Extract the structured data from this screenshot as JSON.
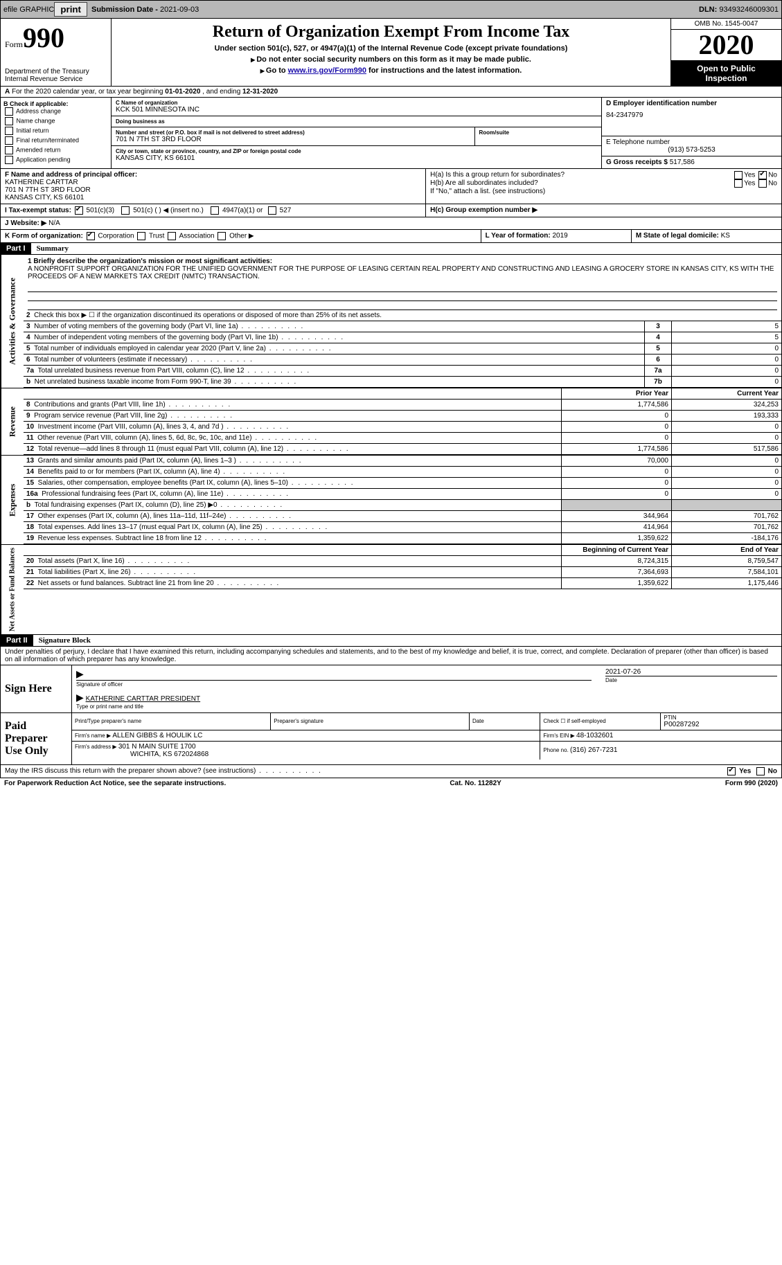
{
  "topbar": {
    "efile": "efile GRAPHIC",
    "print": "print",
    "subdate_lbl": "Submission Date - ",
    "subdate": "2021-09-03",
    "dln_lbl": "DLN: ",
    "dln": "93493246009301"
  },
  "header": {
    "form_word": "Form",
    "form_num": "990",
    "dept1": "Department of the Treasury",
    "dept2": "Internal Revenue Service",
    "title": "Return of Organization Exempt From Income Tax",
    "sub1": "Under section 501(c), 527, or 4947(a)(1) of the Internal Revenue Code (except private foundations)",
    "sub2": "Do not enter social security numbers on this form as it may be made public.",
    "sub3_a": "Go to ",
    "sub3_link": "www.irs.gov/Form990",
    "sub3_b": " for instructions and the latest information.",
    "omb": "OMB No. 1545-0047",
    "year": "2020",
    "open1": "Open to Public",
    "open2": "Inspection"
  },
  "rowA": {
    "text_a": "For the 2020 calendar year, or tax year beginning ",
    "begin": "01-01-2020",
    "text_b": " , and ending ",
    "end": "12-31-2020"
  },
  "boxB": {
    "hdr": "B Check if applicable:",
    "items": [
      "Address change",
      "Name change",
      "Initial return",
      "Final return/terminated",
      "Amended return",
      "Application pending"
    ]
  },
  "boxC": {
    "name_lbl": "C Name of organization",
    "name": "KCK 501 MINNESOTA INC",
    "dba_lbl": "Doing business as",
    "dba": "",
    "addr_lbl": "Number and street (or P.O. box if mail is not delivered to street address)",
    "room_lbl": "Room/suite",
    "addr": "701 N 7TH ST 3RD FLOOR",
    "city_lbl": "City or town, state or province, country, and ZIP or foreign postal code",
    "city": "KANSAS CITY, KS  66101"
  },
  "boxD": {
    "lbl": "D Employer identification number",
    "val": "84-2347979"
  },
  "boxE": {
    "lbl": "E Telephone number",
    "val": "(913) 573-5253"
  },
  "boxG": {
    "lbl": "G Gross receipts $ ",
    "val": "517,586"
  },
  "boxF": {
    "lbl": "F  Name and address of principal officer:",
    "name": "KATHERINE CARTTAR",
    "addr1": "701 N 7TH ST 3RD FLOOR",
    "addr2": "KANSAS CITY, KS  66101"
  },
  "boxH": {
    "ha": "H(a)  Is this a group return for subordinates?",
    "hb": "H(b)  Are all subordinates included?",
    "hnote": "If \"No,\" attach a list. (see instructions)",
    "hc": "H(c)  Group exemption number ▶",
    "yes": "Yes",
    "no": "No"
  },
  "rowI": {
    "lbl": "I  Tax-exempt status:",
    "o1": "501(c)(3)",
    "o2": "501(c) (  ) ◀ (insert no.)",
    "o3": "4947(a)(1) or",
    "o4": "527"
  },
  "rowJ": {
    "lbl": "J  Website: ▶",
    "val": "N/A"
  },
  "rowK": {
    "lbl": "K Form of organization:",
    "o1": "Corporation",
    "o2": "Trust",
    "o3": "Association",
    "o4": "Other ▶"
  },
  "rowL": {
    "lbl": "L Year of formation: ",
    "val": "2019"
  },
  "rowM": {
    "lbl": "M State of legal domicile: ",
    "val": "KS"
  },
  "part1": {
    "num": "Part I",
    "title": "Summary"
  },
  "mission": {
    "lbl": "1  Briefly describe the organization's mission or most significant activities:",
    "text": "A NONPROFIT SUPPORT ORGANIZATION FOR THE UNIFIED GOVERNMENT FOR THE PURPOSE OF LEASING CERTAIN REAL PROPERTY AND CONSTRUCTING AND LEASING A GROCERY STORE IN KANSAS CITY, KS WITH THE PROCEEDS OF A NEW MARKETS TAX CREDIT (NMTC) TRANSACTION."
  },
  "lines_gov": [
    {
      "n": "2",
      "d": "Check this box ▶ ☐  if the organization discontinued its operations or disposed of more than 25% of its net assets.",
      "ln": "",
      "v": ""
    },
    {
      "n": "3",
      "d": "Number of voting members of the governing body (Part VI, line 1a)",
      "ln": "3",
      "v": "5"
    },
    {
      "n": "4",
      "d": "Number of independent voting members of the governing body (Part VI, line 1b)",
      "ln": "4",
      "v": "5"
    },
    {
      "n": "5",
      "d": "Total number of individuals employed in calendar year 2020 (Part V, line 2a)",
      "ln": "5",
      "v": "0"
    },
    {
      "n": "6",
      "d": "Total number of volunteers (estimate if necessary)",
      "ln": "6",
      "v": "0"
    },
    {
      "n": "7a",
      "d": "Total unrelated business revenue from Part VIII, column (C), line 12",
      "ln": "7a",
      "v": "0"
    },
    {
      "n": "b",
      "d": "Net unrelated business taxable income from Form 990-T, line 39",
      "ln": "7b",
      "v": "0"
    }
  ],
  "rev_hdr": {
    "prior": "Prior Year",
    "curr": "Current Year"
  },
  "lines_rev": [
    {
      "n": "8",
      "d": "Contributions and grants (Part VIII, line 1h)",
      "p": "1,774,586",
      "c": "324,253"
    },
    {
      "n": "9",
      "d": "Program service revenue (Part VIII, line 2g)",
      "p": "0",
      "c": "193,333"
    },
    {
      "n": "10",
      "d": "Investment income (Part VIII, column (A), lines 3, 4, and 7d )",
      "p": "0",
      "c": "0"
    },
    {
      "n": "11",
      "d": "Other revenue (Part VIII, column (A), lines 5, 6d, 8c, 9c, 10c, and 11e)",
      "p": "0",
      "c": "0"
    },
    {
      "n": "12",
      "d": "Total revenue—add lines 8 through 11 (must equal Part VIII, column (A), line 12)",
      "p": "1,774,586",
      "c": "517,586"
    }
  ],
  "lines_exp": [
    {
      "n": "13",
      "d": "Grants and similar amounts paid (Part IX, column (A), lines 1–3 )",
      "p": "70,000",
      "c": "0"
    },
    {
      "n": "14",
      "d": "Benefits paid to or for members (Part IX, column (A), line 4)",
      "p": "0",
      "c": "0"
    },
    {
      "n": "15",
      "d": "Salaries, other compensation, employee benefits (Part IX, column (A), lines 5–10)",
      "p": "0",
      "c": "0"
    },
    {
      "n": "16a",
      "d": "Professional fundraising fees (Part IX, column (A), line 11e)",
      "p": "0",
      "c": "0"
    },
    {
      "n": "b",
      "d": "Total fundraising expenses (Part IX, column (D), line 25) ▶0",
      "p": "",
      "c": "",
      "shade": true
    },
    {
      "n": "17",
      "d": "Other expenses (Part IX, column (A), lines 11a–11d, 11f–24e)",
      "p": "344,964",
      "c": "701,762"
    },
    {
      "n": "18",
      "d": "Total expenses. Add lines 13–17 (must equal Part IX, column (A), line 25)",
      "p": "414,964",
      "c": "701,762"
    },
    {
      "n": "19",
      "d": "Revenue less expenses. Subtract line 18 from line 12",
      "p": "1,359,622",
      "c": "-184,176"
    }
  ],
  "na_hdr": {
    "prior": "Beginning of Current Year",
    "curr": "End of Year"
  },
  "lines_na": [
    {
      "n": "20",
      "d": "Total assets (Part X, line 16)",
      "p": "8,724,315",
      "c": "8,759,547"
    },
    {
      "n": "21",
      "d": "Total liabilities (Part X, line 26)",
      "p": "7,364,693",
      "c": "7,584,101"
    },
    {
      "n": "22",
      "d": "Net assets or fund balances. Subtract line 21 from line 20",
      "p": "1,359,622",
      "c": "1,175,446"
    }
  ],
  "vtabs": {
    "gov": "Activities & Governance",
    "rev": "Revenue",
    "exp": "Expenses",
    "na": "Net Assets or Fund Balances"
  },
  "part2": {
    "num": "Part II",
    "title": "Signature Block"
  },
  "sig": {
    "decl": "Under penalties of perjury, I declare that I have examined this return, including accompanying schedules and statements, and to the best of my knowledge and belief, it is true, correct, and complete. Declaration of preparer (other than officer) is based on all information of which preparer has any knowledge.",
    "sign_here": "Sign Here",
    "sig_officer": "Signature of officer",
    "date": "Date",
    "sig_date": "2021-07-26",
    "name": "KATHERINE CARTTAR PRESIDENT",
    "name_lbl": "Type or print name and title"
  },
  "prep": {
    "label": "Paid Preparer Use Only",
    "c1": "Print/Type preparer's name",
    "c2": "Preparer's signature",
    "c3": "Date",
    "c4a": "Check ☐ if self-employed",
    "c4b_lbl": "PTIN",
    "c4b": "P00287292",
    "firm_lbl": "Firm's name   ▶ ",
    "firm": "ALLEN GIBBS & HOULIK LC",
    "ein_lbl": "Firm's EIN ▶ ",
    "ein": "48-1032601",
    "addr_lbl": "Firm's address ▶ ",
    "addr1": "301 N MAIN SUITE 1700",
    "addr2": "WICHITA, KS  672024868",
    "ph_lbl": "Phone no. ",
    "ph": "(316) 267-7231"
  },
  "discuss": {
    "q": "May the IRS discuss this return with the preparer shown above? (see instructions)",
    "yes": "Yes",
    "no": "No"
  },
  "footer": {
    "left": "For Paperwork Reduction Act Notice, see the separate instructions.",
    "mid": "Cat. No. 11282Y",
    "right": "Form 990 (2020)"
  }
}
